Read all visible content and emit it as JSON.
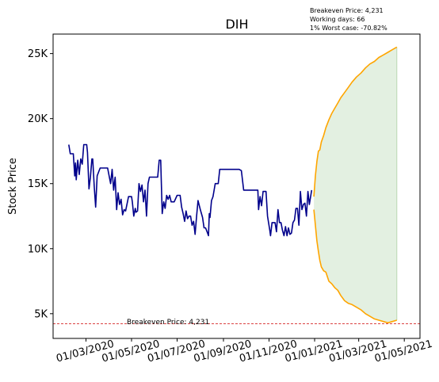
{
  "chart_data": {
    "type": "line",
    "title": "DIH",
    "xlabel": "",
    "ylabel": "Stock Price",
    "ylim": [
      3100,
      26500
    ],
    "xlim": [
      "2020-01-17",
      "2021-05-22"
    ],
    "grid": false,
    "y_ticks": [
      {
        "value": 5000,
        "label": "5K"
      },
      {
        "value": 10000,
        "label": "10K"
      },
      {
        "value": 15000,
        "label": "15K"
      },
      {
        "value": 20000,
        "label": "20K"
      },
      {
        "value": 25000,
        "label": "25K"
      }
    ],
    "x_ticks": [
      {
        "value": "2020-03-01",
        "label": "01/03/2020"
      },
      {
        "value": "2020-05-01",
        "label": "01/05/2020"
      },
      {
        "value": "2020-07-01",
        "label": "01/07/2020"
      },
      {
        "value": "2020-09-01",
        "label": "01/09/2020"
      },
      {
        "value": "2020-11-01",
        "label": "01/11/2020"
      },
      {
        "value": "2021-01-01",
        "label": "01/01/2021"
      },
      {
        "value": "2021-03-01",
        "label": "01/03/2021"
      },
      {
        "value": "2021-05-01",
        "label": "01/05/2021"
      }
    ],
    "info_lines": [
      "Breakeven Price: 4,231",
      "Working days: 66",
      "1% Worst case: -70.82%"
    ],
    "breakeven": {
      "value": 4231,
      "label": "Breakeven Price: 4,231",
      "color": "#d62728"
    },
    "series": [
      {
        "color": "#00008b",
        "points": [
          [
            "2020-02-07",
            18000
          ],
          [
            "2020-02-09",
            17300
          ],
          [
            "2020-02-13",
            17300
          ],
          [
            "2020-02-15",
            15600
          ],
          [
            "2020-02-16",
            16600
          ],
          [
            "2020-02-17",
            15300
          ],
          [
            "2020-02-19",
            16800
          ],
          [
            "2020-02-21",
            15700
          ],
          [
            "2020-02-23",
            16900
          ],
          [
            "2020-02-25",
            16500
          ],
          [
            "2020-02-27",
            18000
          ],
          [
            "2020-03-02",
            18000
          ],
          [
            "2020-03-03",
            17400
          ],
          [
            "2020-03-05",
            14600
          ],
          [
            "2020-03-07",
            15500
          ],
          [
            "2020-03-09",
            16900
          ],
          [
            "2020-03-10",
            16900
          ],
          [
            "2020-03-12",
            14800
          ],
          [
            "2020-03-14",
            13200
          ],
          [
            "2020-03-16",
            15600
          ],
          [
            "2020-03-18",
            15900
          ],
          [
            "2020-03-20",
            16200
          ],
          [
            "2020-03-25",
            16200
          ],
          [
            "2020-03-30",
            16200
          ],
          [
            "2020-04-01",
            15600
          ],
          [
            "2020-04-03",
            15000
          ],
          [
            "2020-04-05",
            16100
          ],
          [
            "2020-04-07",
            14500
          ],
          [
            "2020-04-09",
            15500
          ],
          [
            "2020-04-11",
            13000
          ],
          [
            "2020-04-13",
            14300
          ],
          [
            "2020-04-15",
            13400
          ],
          [
            "2020-04-17",
            13800
          ],
          [
            "2020-04-19",
            12600
          ],
          [
            "2020-04-21",
            13000
          ],
          [
            "2020-04-23",
            12900
          ],
          [
            "2020-04-27",
            14000
          ],
          [
            "2020-04-29",
            14000
          ],
          [
            "2020-05-01",
            14000
          ],
          [
            "2020-05-02",
            13600
          ],
          [
            "2020-05-04",
            12500
          ],
          [
            "2020-05-06",
            13100
          ],
          [
            "2020-05-07",
            12800
          ],
          [
            "2020-05-09",
            12900
          ],
          [
            "2020-05-11",
            15000
          ],
          [
            "2020-05-13",
            14400
          ],
          [
            "2020-05-15",
            14900
          ],
          [
            "2020-05-17",
            13600
          ],
          [
            "2020-05-19",
            14500
          ],
          [
            "2020-05-21",
            12500
          ],
          [
            "2020-05-23",
            15000
          ],
          [
            "2020-05-25",
            15500
          ],
          [
            "2020-06-01",
            15500
          ],
          [
            "2020-06-05",
            15500
          ],
          [
            "2020-06-07",
            16800
          ],
          [
            "2020-06-09",
            16800
          ],
          [
            "2020-06-11",
            12700
          ],
          [
            "2020-06-13",
            13600
          ],
          [
            "2020-06-15",
            13100
          ],
          [
            "2020-06-17",
            14100
          ],
          [
            "2020-06-19",
            13800
          ],
          [
            "2020-06-21",
            14100
          ],
          [
            "2020-06-23",
            13600
          ],
          [
            "2020-06-27",
            13600
          ],
          [
            "2020-07-01",
            14100
          ],
          [
            "2020-07-05",
            14100
          ],
          [
            "2020-07-07",
            13200
          ],
          [
            "2020-07-09",
            12700
          ],
          [
            "2020-07-11",
            12100
          ],
          [
            "2020-07-13",
            12900
          ],
          [
            "2020-07-15",
            12300
          ],
          [
            "2020-07-17",
            12500
          ],
          [
            "2020-07-19",
            12500
          ],
          [
            "2020-07-21",
            11800
          ],
          [
            "2020-07-23",
            12100
          ],
          [
            "2020-07-25",
            11100
          ],
          [
            "2020-07-27",
            12500
          ],
          [
            "2020-07-29",
            13700
          ],
          [
            "2020-08-01",
            13000
          ],
          [
            "2020-08-04",
            12400
          ],
          [
            "2020-08-06",
            11600
          ],
          [
            "2020-08-08",
            11600
          ],
          [
            "2020-08-10",
            11300
          ],
          [
            "2020-08-12",
            11000
          ],
          [
            "2020-08-13",
            12700
          ],
          [
            "2020-08-14",
            12400
          ],
          [
            "2020-08-16",
            13700
          ],
          [
            "2020-08-18",
            14000
          ],
          [
            "2020-08-21",
            15000
          ],
          [
            "2020-08-23",
            15000
          ],
          [
            "2020-08-25",
            15000
          ],
          [
            "2020-08-27",
            16100
          ],
          [
            "2020-09-05",
            16100
          ],
          [
            "2020-09-15",
            16100
          ],
          [
            "2020-09-22",
            16100
          ],
          [
            "2020-09-25",
            16000
          ],
          [
            "2020-09-28",
            14500
          ],
          [
            "2020-10-05",
            14500
          ],
          [
            "2020-10-14",
            14500
          ],
          [
            "2020-10-17",
            14500
          ],
          [
            "2020-10-18",
            13000
          ],
          [
            "2020-10-20",
            14000
          ],
          [
            "2020-10-22",
            13300
          ],
          [
            "2020-10-24",
            14400
          ],
          [
            "2020-10-28",
            14400
          ],
          [
            "2020-10-30",
            12500
          ],
          [
            "2020-11-02",
            11400
          ],
          [
            "2020-11-03",
            11000
          ],
          [
            "2020-11-05",
            12000
          ],
          [
            "2020-11-07",
            12000
          ],
          [
            "2020-11-09",
            12000
          ],
          [
            "2020-11-11",
            11300
          ],
          [
            "2020-11-13",
            13000
          ],
          [
            "2020-11-15",
            12000
          ],
          [
            "2020-11-17",
            12000
          ],
          [
            "2020-11-19",
            11400
          ],
          [
            "2020-11-21",
            11000
          ],
          [
            "2020-11-23",
            11700
          ],
          [
            "2020-11-25",
            11000
          ],
          [
            "2020-11-27",
            11600
          ],
          [
            "2020-11-29",
            11100
          ],
          [
            "2020-12-01",
            11200
          ],
          [
            "2020-12-03",
            12000
          ],
          [
            "2020-12-05",
            12200
          ],
          [
            "2020-12-07",
            13100
          ],
          [
            "2020-12-09",
            13100
          ],
          [
            "2020-12-11",
            11800
          ],
          [
            "2020-12-13",
            14400
          ],
          [
            "2020-12-15",
            13000
          ],
          [
            "2020-12-17",
            13400
          ],
          [
            "2020-12-19",
            13500
          ],
          [
            "2020-12-21",
            12500
          ],
          [
            "2020-12-23",
            14400
          ],
          [
            "2020-12-25",
            13400
          ],
          [
            "2020-12-28",
            14500
          ]
        ]
      },
      {
        "color": "#ffa500",
        "points": [
          [
            "2020-12-31",
            14000
          ],
          [
            "2021-01-02",
            15600
          ],
          [
            "2021-01-04",
            16700
          ],
          [
            "2021-01-06",
            17500
          ],
          [
            "2021-01-08",
            17600
          ],
          [
            "2021-01-10",
            18200
          ],
          [
            "2021-01-13",
            18700
          ],
          [
            "2021-01-16",
            19300
          ],
          [
            "2021-01-20",
            19900
          ],
          [
            "2021-01-24",
            20400
          ],
          [
            "2021-01-28",
            20800
          ],
          [
            "2021-02-01",
            21200
          ],
          [
            "2021-02-05",
            21600
          ],
          [
            "2021-02-10",
            22000
          ],
          [
            "2021-02-15",
            22400
          ],
          [
            "2021-02-20",
            22800
          ],
          [
            "2021-02-26",
            23200
          ],
          [
            "2021-03-04",
            23500
          ],
          [
            "2021-03-10",
            23900
          ],
          [
            "2021-03-16",
            24200
          ],
          [
            "2021-03-22",
            24400
          ],
          [
            "2021-03-28",
            24700
          ],
          [
            "2021-04-03",
            24900
          ],
          [
            "2021-04-09",
            25100
          ],
          [
            "2021-04-15",
            25300
          ],
          [
            "2021-04-21",
            25500
          ]
        ]
      },
      {
        "color": "#ffa500",
        "points": [
          [
            "2020-12-31",
            13000
          ],
          [
            "2021-01-02",
            11800
          ],
          [
            "2021-01-04",
            10600
          ],
          [
            "2021-01-06",
            9800
          ],
          [
            "2021-01-08",
            9100
          ],
          [
            "2021-01-10",
            8600
          ],
          [
            "2021-01-13",
            8300
          ],
          [
            "2021-01-16",
            8200
          ],
          [
            "2021-01-20",
            7500
          ],
          [
            "2021-01-24",
            7300
          ],
          [
            "2021-01-28",
            7000
          ],
          [
            "2021-02-01",
            6800
          ],
          [
            "2021-02-05",
            6400
          ],
          [
            "2021-02-10",
            6000
          ],
          [
            "2021-02-15",
            5800
          ],
          [
            "2021-02-20",
            5700
          ],
          [
            "2021-02-26",
            5500
          ],
          [
            "2021-03-04",
            5300
          ],
          [
            "2021-03-10",
            5000
          ],
          [
            "2021-03-16",
            4800
          ],
          [
            "2021-03-22",
            4600
          ],
          [
            "2021-03-28",
            4500
          ],
          [
            "2021-04-03",
            4400
          ],
          [
            "2021-04-09",
            4300
          ],
          [
            "2021-04-15",
            4400
          ],
          [
            "2021-04-21",
            4500
          ]
        ]
      }
    ],
    "band": {
      "color": "#d7ead4"
    }
  }
}
